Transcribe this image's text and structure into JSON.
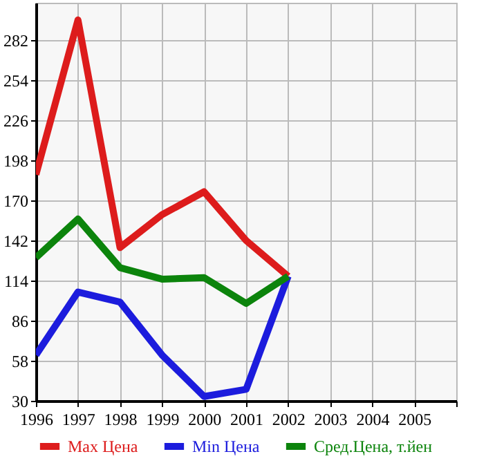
{
  "chart_data": {
    "type": "line",
    "x": [
      1996,
      1997,
      1998,
      1999,
      2000,
      2001,
      2002
    ],
    "series": [
      {
        "name": "Max Цена",
        "color": "#dd1c1c",
        "values": [
          188,
          296,
          137,
          160,
          176,
          142,
          117
        ]
      },
      {
        "name": "Min Цена",
        "color": "#1c1cdd",
        "values": [
          62,
          106,
          99,
          62,
          33,
          38,
          117
        ]
      },
      {
        "name": "Сред.Цена, т.йен",
        "color": "#0c840c",
        "values": [
          130,
          157,
          123,
          115,
          116,
          98,
          117
        ]
      }
    ],
    "xlim": [
      1996,
      2006
    ],
    "xticks": [
      1996,
      1997,
      1998,
      1999,
      2000,
      2001,
      2002,
      2003,
      2004,
      2005,
      {
        "value": 2006,
        "label": null
      }
    ],
    "ylim": [
      30,
      308
    ],
    "yticks": [
      30,
      58,
      86,
      114,
      142,
      170,
      198,
      226,
      254,
      282
    ],
    "grid": true,
    "legend": "bottom",
    "marker": "none",
    "line_style": "solid"
  }
}
